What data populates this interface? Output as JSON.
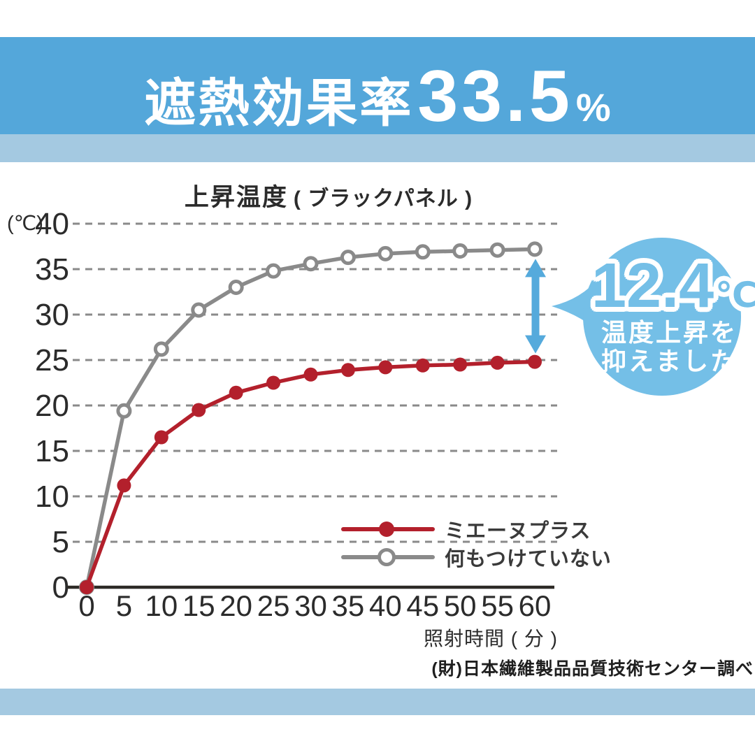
{
  "header": {
    "title_prefix": "遮熱効果率",
    "title_value": "33.5",
    "title_unit": "%"
  },
  "chart_data": {
    "type": "line",
    "title_main": "上昇温度",
    "title_sub": "( ブラックパネル )",
    "y_unit": "(℃)",
    "xlabel": "照射時間 ( 分 )",
    "x": [
      0,
      5,
      10,
      15,
      20,
      25,
      30,
      35,
      40,
      45,
      50,
      55,
      60
    ],
    "y_ticks": [
      0,
      5,
      10,
      15,
      20,
      25,
      30,
      35,
      40
    ],
    "xlim": [
      0,
      60
    ],
    "ylim": [
      0,
      40
    ],
    "grid": "horizontal-dashed",
    "legend_position": "inside-lower-right",
    "series": [
      {
        "name": "ミエーヌプラス",
        "color": "#b3202c",
        "marker": "filled-circle",
        "values": [
          0,
          11.2,
          16.5,
          19.5,
          21.4,
          22.5,
          23.4,
          23.9,
          24.2,
          24.4,
          24.5,
          24.7,
          24.8
        ]
      },
      {
        "name": "何もつけていない",
        "color": "#8a8a8a",
        "marker": "open-circle",
        "values": [
          0,
          19.4,
          26.2,
          30.5,
          33.0,
          34.8,
          35.6,
          36.3,
          36.7,
          36.9,
          37.0,
          37.1,
          37.2
        ]
      }
    ]
  },
  "annotation": {
    "value": "12.4",
    "unit": "℃",
    "line1": "温度上昇を",
    "line2": "抑えました！",
    "bubble_color": "#74bfe7",
    "arrow_color": "#55aadc"
  },
  "footer": {
    "source": "(財)日本繊維製品品質技術センター調べ"
  },
  "colors": {
    "banner": "#54a7da",
    "strip": "#a4c9e1",
    "axis": "#2d2a26",
    "tick_text": "#2b2b2b",
    "grid": "#8a8a8a"
  }
}
